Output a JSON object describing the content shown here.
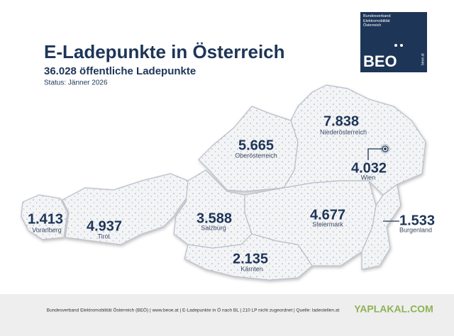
{
  "header": {
    "title": "E-Ladepunkte in Österreich",
    "subtitle": "36.028 öffentliche Ladepunkte",
    "status": "Status: Jänner 2026"
  },
  "logo": {
    "org": "Bundesverband Elektromobilität Österreich",
    "name": "BEO",
    "url": "beoe.at"
  },
  "regions": [
    {
      "name": "Niederösterreich",
      "value": "7.838"
    },
    {
      "name": "Oberösterreich",
      "value": "5.665"
    },
    {
      "name": "Wien",
      "value": "4.032"
    },
    {
      "name": "Vorarlberg",
      "value": "1.413"
    },
    {
      "name": "Tirol",
      "value": "4.937"
    },
    {
      "name": "Salzburg",
      "value": "3.588"
    },
    {
      "name": "Steiermark",
      "value": "4.677"
    },
    {
      "name": "Burgenland",
      "value": "1.533"
    },
    {
      "name": "Kärnten",
      "value": "2.135"
    }
  ],
  "footer": {
    "text": "Bundesverband Elektromobilität Österreich (BEÖ) | www.beoe.at | E-Ladepunkte in Ö nach BL | 210 LP nicht zugeordnet | Quelle: ladestellen.at"
  },
  "watermark": "YAPLAKAL.COM"
}
